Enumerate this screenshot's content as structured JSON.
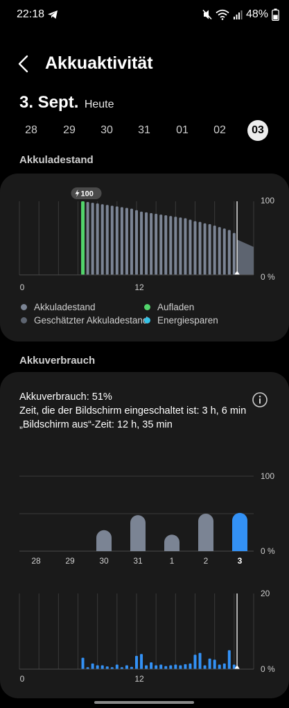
{
  "status": {
    "time": "22:18",
    "battery_percent": "48%",
    "icons": [
      "telegram-icon",
      "mute-icon",
      "wifi-icon",
      "signal-icon",
      "battery-icon"
    ]
  },
  "header": {
    "title": "Akkuaktivität"
  },
  "date": {
    "main": "3. Sept.",
    "sub": "Heute"
  },
  "day_strip": {
    "days": [
      "28",
      "29",
      "30",
      "31",
      "01",
      "02",
      "03"
    ],
    "selected": "03"
  },
  "sections": {
    "level": "Akkuladestand",
    "usage": "Akkuverbrauch"
  },
  "level_chart": {
    "badge": "100",
    "y_top": "100",
    "y_bottom": "0 %",
    "x_labels": [
      "0",
      "12"
    ],
    "legend": [
      {
        "label": "Akkuladestand",
        "color": "#7b8494"
      },
      {
        "label": "Aufladen",
        "color": "#52d46b"
      },
      {
        "label": "Geschätzter Akkuladestand",
        "color": "#5d6470"
      },
      {
        "label": "Energiesparen",
        "color": "#35c2e6"
      }
    ]
  },
  "usage_card": {
    "line1": "Akkuverbrauch: 51%",
    "line2": "Zeit, die der Bildschirm eingeschaltet ist: 3 h, 6 min",
    "line3": "„Bildschirm aus“-Zeit: 12 h, 35 min"
  },
  "chart_data": [
    {
      "type": "bar",
      "title": "Akkuladestand",
      "x_unit": "hour",
      "x_tick_labels": [
        "0",
        "12"
      ],
      "ylim": [
        0,
        100
      ],
      "y_tick_labels": [
        "100",
        "0 %"
      ],
      "grid": true,
      "charging_hour": 6.5,
      "now_hour": 22.3,
      "series": [
        {
          "name": "Akkuladestand",
          "x": [
            6.5,
            7,
            7.5,
            8,
            8.5,
            9,
            9.5,
            10,
            10.5,
            11,
            11.5,
            12,
            12.5,
            13,
            13.5,
            14,
            14.5,
            15,
            15.5,
            16,
            16.5,
            17,
            17.5,
            18,
            18.5,
            19,
            19.5,
            20,
            20.5,
            21,
            21.5,
            22
          ],
          "values": [
            100,
            99,
            98,
            97,
            96,
            95,
            94,
            93,
            92,
            91,
            90,
            88,
            86,
            85,
            84,
            83,
            82,
            81,
            80,
            79,
            78,
            77,
            75,
            73,
            72,
            70,
            69,
            67,
            65,
            63,
            61,
            57
          ]
        },
        {
          "name": "Geschätzter Akkuladestand",
          "x": [
            22.3,
            24
          ],
          "values": [
            48,
            38
          ]
        }
      ]
    },
    {
      "type": "bar",
      "title": "Akkuverbrauch",
      "categories": [
        "28",
        "29",
        "30",
        "31",
        "1",
        "2",
        "3"
      ],
      "values": [
        0,
        0,
        28,
        48,
        22,
        50,
        51
      ],
      "ylim": [
        0,
        100
      ],
      "y_tick_labels": [
        "100",
        "0 %"
      ],
      "highlight": "3"
    },
    {
      "type": "bar",
      "title": "Akkuverbrauch (Stunden)",
      "x_unit": "hour",
      "x_tick_labels": [
        "0",
        "12"
      ],
      "ylim": [
        0,
        20
      ],
      "y_tick_labels": [
        "20",
        "0 %"
      ],
      "now_hour": 22.3,
      "x": [
        6.5,
        7,
        7.5,
        8,
        8.5,
        9,
        9.5,
        10,
        10.5,
        11,
        11.5,
        12,
        12.5,
        13,
        13.5,
        14,
        14.5,
        15,
        15.5,
        16,
        16.5,
        17,
        17.5,
        18,
        18.5,
        19,
        19.5,
        20,
        20.5,
        21,
        21.5,
        22
      ],
      "values": [
        3,
        0.5,
        1.5,
        1,
        1,
        0.7,
        0.5,
        1.2,
        0.5,
        1,
        0.6,
        3.5,
        4,
        1,
        1.8,
        1,
        1.2,
        0.8,
        1,
        1.2,
        1,
        1.3,
        1.5,
        3.8,
        4.3,
        1,
        2.8,
        2.5,
        1.2,
        1.5,
        5,
        1.2
      ]
    }
  ]
}
